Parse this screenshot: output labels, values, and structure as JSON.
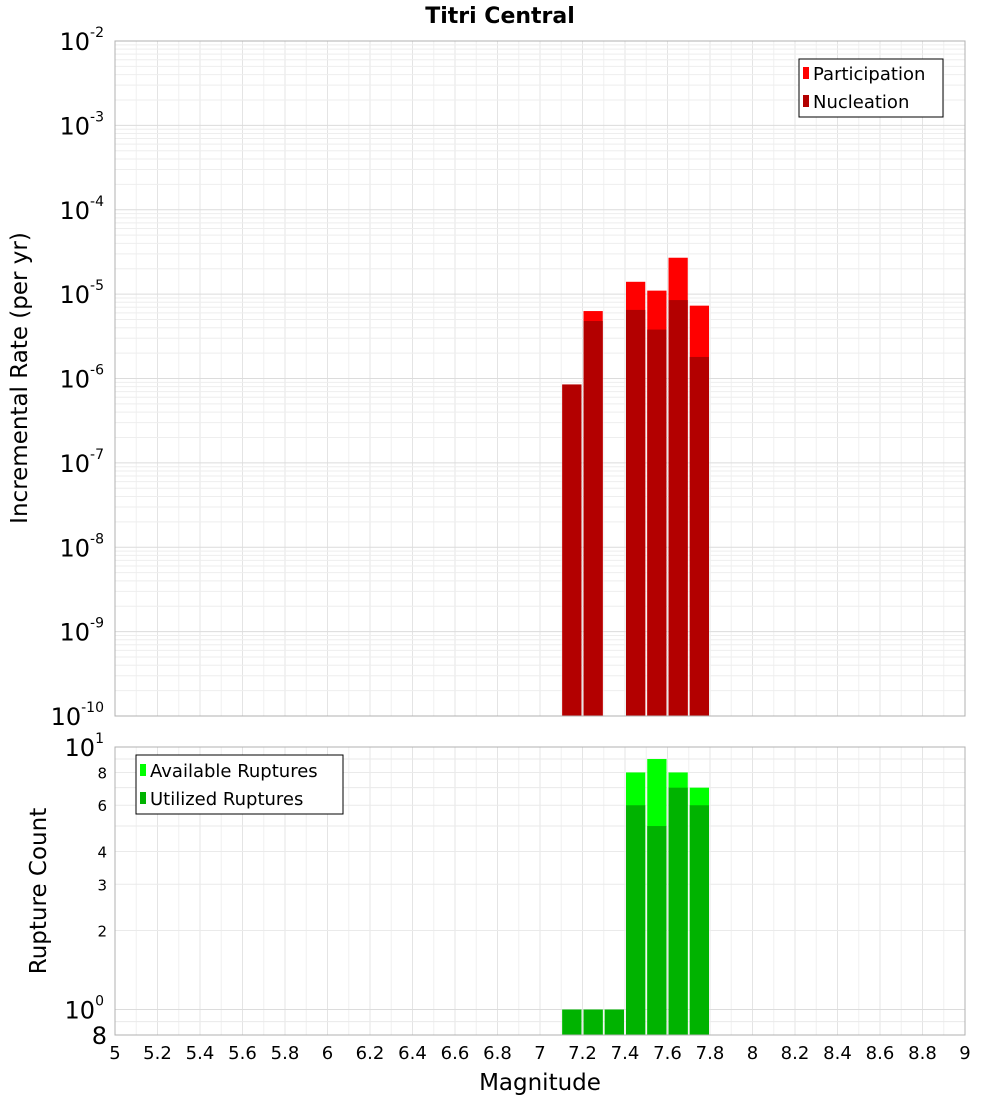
{
  "chart_data": [
    {
      "type": "bar",
      "title": "Titri Central",
      "xlabel": "",
      "ylabel": "Incremental Rate (per yr)",
      "yscale": "log",
      "ylim": [
        1e-10,
        0.01
      ],
      "xlim": [
        5,
        9
      ],
      "grid": true,
      "legend_position": "top-right",
      "bar_width": 0.1,
      "y_ticks": [
        {
          "base": "10",
          "exp": "-10",
          "value": 1e-10
        },
        {
          "base": "10",
          "exp": "-9",
          "value": 1e-09
        },
        {
          "base": "10",
          "exp": "-8",
          "value": 1e-08
        },
        {
          "base": "10",
          "exp": "-7",
          "value": 1e-07
        },
        {
          "base": "10",
          "exp": "-6",
          "value": 1e-06
        },
        {
          "base": "10",
          "exp": "-5",
          "value": 1e-05
        },
        {
          "base": "10",
          "exp": "-4",
          "value": 0.0001
        },
        {
          "base": "10",
          "exp": "-3",
          "value": 0.001
        },
        {
          "base": "10",
          "exp": "-2",
          "value": 0.01
        }
      ],
      "series": [
        {
          "name": "Participation",
          "color": "#ff0000",
          "x": [
            7.15,
            7.25,
            7.45,
            7.55,
            7.65,
            7.75
          ],
          "values": [
            8.5e-07,
            6.3e-06,
            1.4e-05,
            1.1e-05,
            2.7e-05,
            7.3e-06
          ]
        },
        {
          "name": "Nucleation",
          "color": "#b30000",
          "x": [
            7.15,
            7.25,
            7.45,
            7.55,
            7.65,
            7.75
          ],
          "values": [
            8.5e-07,
            4.8e-06,
            6.5e-06,
            3.8e-06,
            8.5e-06,
            1.8e-06
          ]
        }
      ]
    },
    {
      "type": "bar",
      "xlabel": "Magnitude",
      "ylabel": "Rupture Count",
      "yscale": "log",
      "ylim": [
        0.8,
        10
      ],
      "xlim": [
        5,
        9
      ],
      "grid": true,
      "legend_position": "top-left",
      "bar_width": 0.1,
      "x_ticks": [
        "5",
        "5.2",
        "5.4",
        "5.6",
        "5.8",
        "6",
        "6.2",
        "6.4",
        "6.6",
        "6.8",
        "7",
        "7.2",
        "7.4",
        "7.6",
        "7.8",
        "8",
        "8.2",
        "8.4",
        "8.6",
        "8.8",
        "9"
      ],
      "y_major_ticks": [
        {
          "base": "10",
          "exp": "1",
          "value": 10
        },
        {
          "base": "10",
          "exp": "0",
          "value": 1
        }
      ],
      "y_minor_ticks": [
        "8",
        "6",
        "4",
        "3",
        "2"
      ],
      "y_minor_tick_values": [
        8,
        6,
        4,
        3,
        2
      ],
      "y_bottom_tick": "8",
      "series": [
        {
          "name": "Available Ruptures",
          "color": "#00ff00",
          "x": [
            7.15,
            7.25,
            7.35,
            7.45,
            7.55,
            7.65,
            7.75
          ],
          "values": [
            1,
            1,
            1,
            8,
            9,
            8,
            7
          ]
        },
        {
          "name": "Utilized Ruptures",
          "color": "#00b300",
          "x": [
            7.15,
            7.25,
            7.35,
            7.45,
            7.55,
            7.65,
            7.75
          ],
          "values": [
            1,
            1,
            1,
            6,
            5,
            7,
            6
          ]
        }
      ]
    }
  ]
}
